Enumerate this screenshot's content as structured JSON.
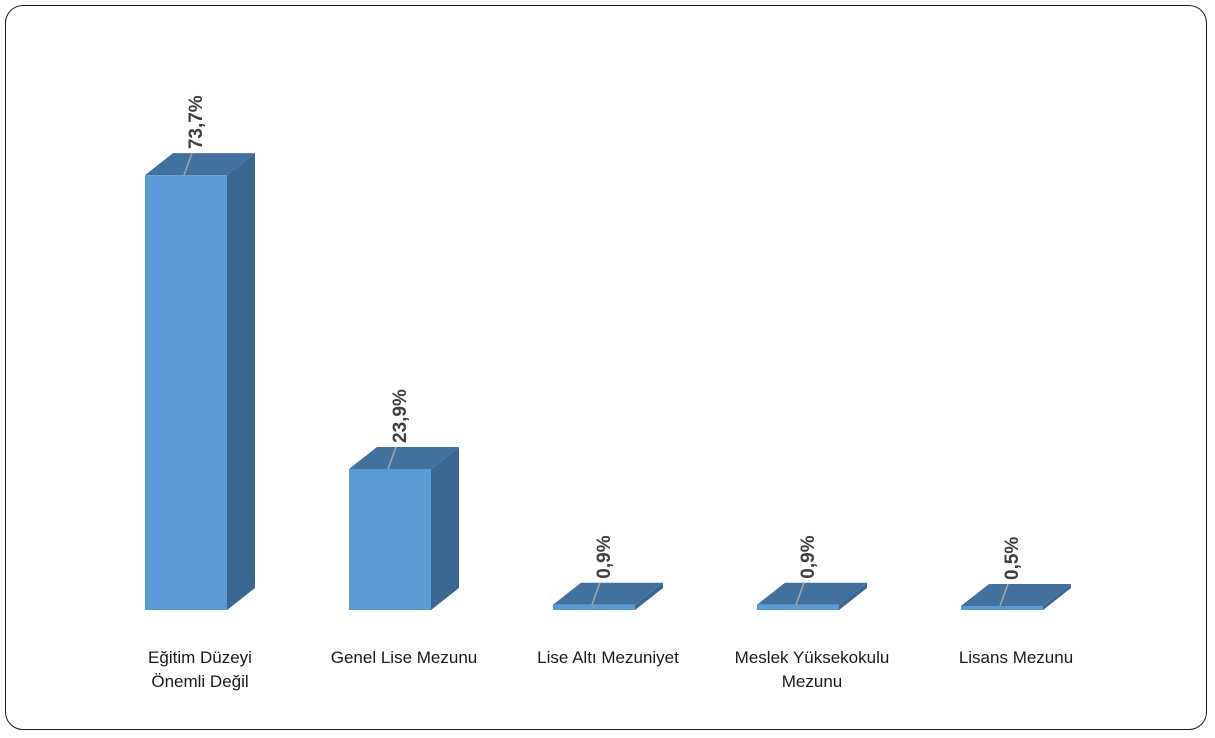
{
  "chart_data": {
    "type": "bar",
    "categories": [
      [
        "Eğitim Düzeyi",
        "Önemli Değil"
      ],
      [
        "Genel Lise Mezunu"
      ],
      [
        "Lise Altı Mezuniyet"
      ],
      [
        "Meslek Yüksekokulu",
        "Mezunu"
      ],
      [
        "Lisans Mezunu"
      ]
    ],
    "values": [
      73.7,
      23.9,
      0.9,
      0.9,
      0.5
    ],
    "value_labels": [
      "73,7%",
      "23,9%",
      "0,9%",
      "0,9%",
      "0,5%"
    ],
    "style": "3d-column",
    "grid": false,
    "legend": "none",
    "colors": {
      "front": "#5b9bd5",
      "top": "#41719c",
      "side": "#3a6690",
      "leader": "#a6a6a6"
    }
  }
}
